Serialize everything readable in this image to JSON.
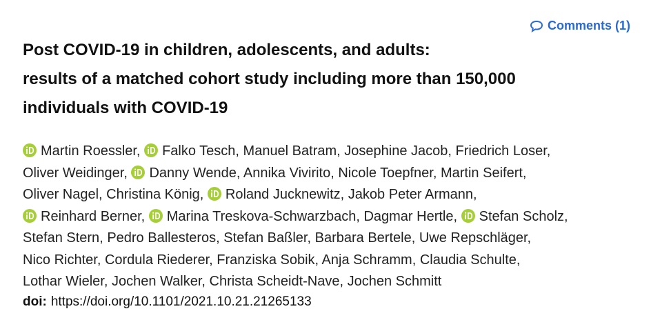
{
  "comments": "Comments (1)",
  "title": [
    "Post COVID-19 in children, adolescents, and adults:",
    "results of a matched cohort study including more than 150,000",
    "individuals with COVID-19"
  ],
  "authors": [
    "Martin Roessler,",
    "Falko Tesch,",
    "Manuel Batram,",
    "Josephine Jacob,",
    "Friedrich Loser,",
    "Oliver Weidinger,",
    "Danny Wende,",
    "Annika Vivirito,",
    "Nicole Toepfner,",
    "Martin Seifert,",
    "Oliver Nagel,",
    "Christina König,",
    "Roland Jucknewitz,",
    "Jakob Peter Armann,",
    "Reinhard Berner,",
    "Marina Treskova-Schwarzbach,",
    "Dagmar Hertle,",
    "Stefan Scholz,",
    "Stefan Stern,",
    "Pedro Ballesteros,",
    "Stefan Baßler,",
    "Barbara Bertele,",
    "Uwe Repschläger,",
    "Nico Richter,",
    "Cordula Riederer,",
    "Franziska Sobik,",
    "Anja Schramm,",
    "Claudia Schulte,",
    "Lothar Wieler,",
    "Jochen Walker,",
    "Christa Scheidt-Nave,",
    "Jochen Schmitt"
  ],
  "doi": {
    "label": "doi:",
    "url": "https://doi.org/10.1101/2021.10.21.21265133"
  }
}
